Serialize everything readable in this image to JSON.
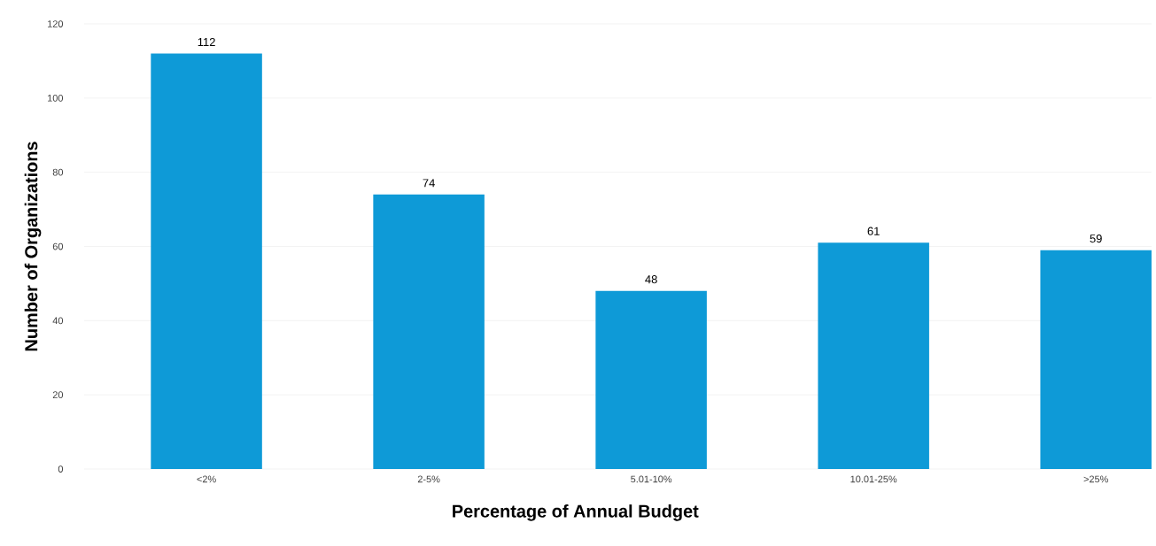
{
  "chart_data": {
    "type": "bar",
    "xlabel": "Percentage of Annual Budget",
    "ylabel": "Number of Organizations",
    "categories": [
      "<2%",
      "2-5%",
      "5.01-10%",
      "10.01-25%",
      ">25%"
    ],
    "values": [
      112,
      74,
      48,
      61,
      59
    ],
    "color": "#0e9ad7",
    "ylim": [
      0,
      120
    ],
    "yticks": [
      0,
      20,
      40,
      60,
      80,
      100,
      120
    ],
    "grid": "y",
    "data_labels": true
  }
}
